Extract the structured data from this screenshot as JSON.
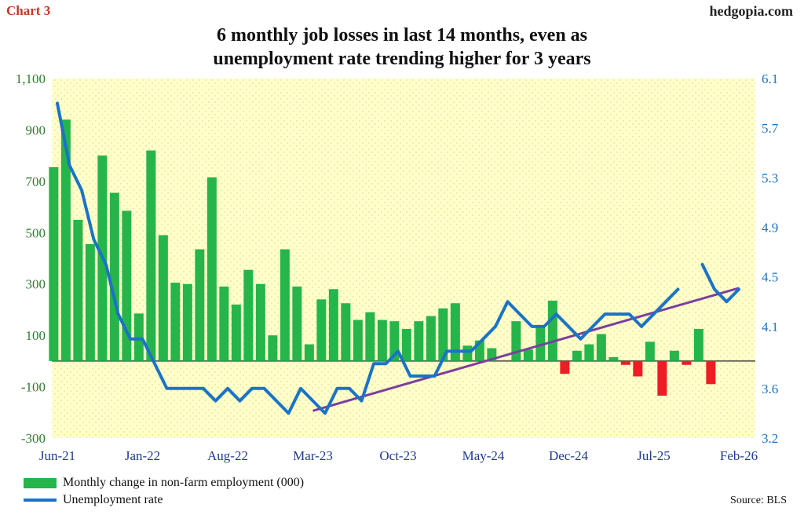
{
  "header": {
    "chart_label": "Chart 3",
    "site": "hedgopia.com",
    "title_line1": "6 monthly job losses in last 14 months, even as",
    "title_line2": "unemployment rate trending higher for 3 years"
  },
  "footer": {
    "source": "Source: BLS"
  },
  "colors": {
    "positive_bar": "#25b54a",
    "negative_bar": "#ee1c24",
    "unemployment_line": "#1a73c6",
    "trend_line": "#7b3fa0",
    "plot_background": "#ffffcc",
    "left_axis_text": "#2e7d32",
    "right_axis_text": "#1a73c6",
    "x_axis_text": "#1f3a93"
  },
  "chart_data": {
    "type": "bar",
    "title": "6 monthly job losses in last 14 months, even as unemployment rate trending higher for 3 years",
    "xlabel": "",
    "x_tick_labels": [
      "Jun-21",
      "Jan-22",
      "Aug-22",
      "Mar-23",
      "Oct-23",
      "May-24",
      "Dec-24",
      "Jul-25",
      "Feb-26"
    ],
    "categories": [
      "Jun-21",
      "Jul-21",
      "Aug-21",
      "Sep-21",
      "Oct-21",
      "Nov-21",
      "Dec-21",
      "Jan-22",
      "Feb-22",
      "Mar-22",
      "Apr-22",
      "May-22",
      "Jun-22",
      "Jul-22",
      "Aug-22",
      "Sep-22",
      "Oct-22",
      "Nov-22",
      "Dec-22",
      "Jan-23",
      "Feb-23",
      "Mar-23",
      "Apr-23",
      "May-23",
      "Jun-23",
      "Jul-23",
      "Aug-23",
      "Sep-23",
      "Oct-23",
      "Nov-23",
      "Dec-23",
      "Jan-24",
      "Feb-24",
      "Mar-24",
      "Apr-24",
      "May-24",
      "Jun-24",
      "Jul-24",
      "Aug-24",
      "Sep-24",
      "Oct-24",
      "Nov-24",
      "Dec-24",
      "Jan-25",
      "Feb-25",
      "Mar-25",
      "Apr-25",
      "May-25",
      "Jun-25",
      "Jul-25",
      "Aug-25",
      "Sep-25",
      "Oct-25",
      "Nov-25",
      "Dec-25",
      "Jan-26",
      "Feb-26"
    ],
    "left_axis": {
      "ylim": [
        -300,
        1100
      ],
      "ticks": [
        -300,
        -100,
        100,
        300,
        500,
        700,
        900,
        1100
      ],
      "tick_labels": [
        "-300",
        "-100",
        "100",
        "300",
        "500",
        "700",
        "900",
        "1,100"
      ]
    },
    "right_axis": {
      "ylim": [
        3.2,
        6.1
      ],
      "ticks": [
        3.2,
        3.6,
        4.1,
        4.5,
        4.9,
        5.3,
        5.7,
        6.1
      ],
      "tick_labels": [
        "3.2",
        "3.6",
        "4.1",
        "4.5",
        "4.9",
        "5.3",
        "5.7",
        "6.1"
      ]
    },
    "series": [
      {
        "name": "Monthly change in non-farm employment (000)",
        "kind": "bar",
        "axis": "left",
        "values": [
          755,
          940,
          550,
          455,
          800,
          655,
          585,
          185,
          820,
          490,
          305,
          300,
          435,
          715,
          290,
          220,
          355,
          300,
          100,
          435,
          290,
          65,
          240,
          280,
          225,
          160,
          190,
          160,
          155,
          125,
          155,
          175,
          205,
          225,
          60,
          80,
          50,
          null,
          155,
          45,
          135,
          235,
          -50,
          40,
          65,
          105,
          15,
          -15,
          -60,
          75,
          -135,
          40,
          -15,
          125,
          -90,
          null,
          null
        ],
        "bar_offset": -0.3
      },
      {
        "name": "Unemployment rate",
        "kind": "line",
        "axis": "right",
        "values": [
          5.9,
          5.4,
          5.2,
          4.8,
          4.6,
          4.2,
          4.0,
          4.0,
          3.8,
          3.6,
          3.6,
          3.6,
          3.6,
          3.5,
          3.6,
          3.5,
          3.6,
          3.6,
          3.5,
          3.4,
          3.6,
          3.5,
          3.4,
          3.6,
          3.6,
          3.5,
          3.8,
          3.8,
          3.9,
          3.7,
          3.7,
          3.7,
          3.9,
          3.9,
          3.9,
          4.0,
          4.1,
          4.3,
          4.2,
          4.1,
          4.1,
          4.2,
          4.1,
          4.0,
          4.1,
          4.2,
          4.2,
          4.2,
          4.1,
          4.2,
          4.3,
          4.4,
          null,
          4.6,
          4.4,
          4.3,
          4.4
        ]
      }
    ],
    "trend_line": {
      "axis": "right",
      "from": {
        "x": "Mar-23",
        "y": 3.42
      },
      "to": {
        "x": "Feb-26",
        "y": 4.41
      }
    },
    "grid": false,
    "legend": "bottom-left"
  }
}
